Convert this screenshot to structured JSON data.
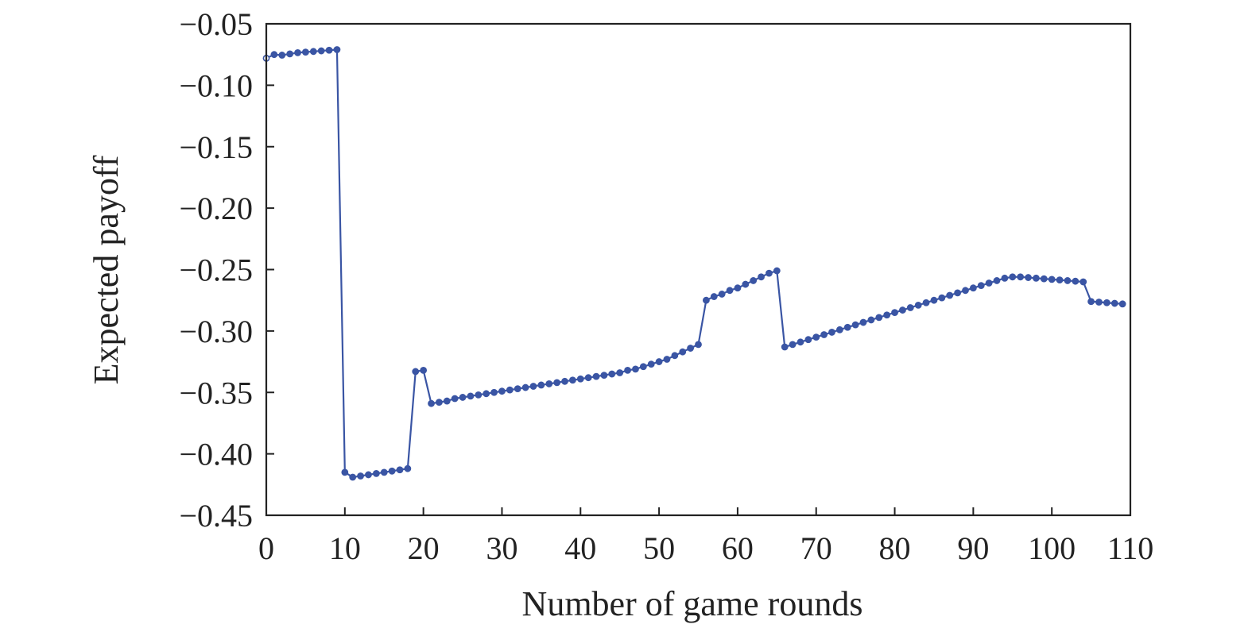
{
  "chart_data": {
    "type": "line",
    "title": "",
    "xlabel": "Number of game rounds",
    "ylabel": "Expected payoff",
    "xlim": [
      0,
      110
    ],
    "ylim": [
      -0.45,
      -0.05
    ],
    "xticks": [
      0,
      10,
      20,
      30,
      40,
      50,
      60,
      70,
      80,
      90,
      100,
      110
    ],
    "yticks": [
      -0.45,
      -0.4,
      -0.35,
      -0.3,
      -0.25,
      -0.2,
      -0.15,
      -0.1,
      -0.05
    ],
    "xtick_labels": [
      "0",
      "10",
      "20",
      "30",
      "40",
      "50",
      "60",
      "70",
      "80",
      "90",
      "100",
      "110"
    ],
    "ytick_labels": [
      "−0.45",
      "−0.40",
      "−0.35",
      "−0.30",
      "−0.25",
      "−0.20",
      "−0.15",
      "−0.10",
      "−0.05"
    ],
    "grid": false,
    "legend": "none",
    "series": [
      {
        "color": "#3a55a4",
        "marker": "circle",
        "x": [
          0,
          1,
          2,
          3,
          4,
          5,
          6,
          7,
          8,
          9,
          10,
          11,
          12,
          13,
          14,
          15,
          16,
          17,
          18,
          19,
          20,
          21,
          22,
          23,
          24,
          25,
          26,
          27,
          28,
          29,
          30,
          31,
          32,
          33,
          34,
          35,
          36,
          37,
          38,
          39,
          40,
          41,
          42,
          43,
          44,
          45,
          46,
          47,
          48,
          49,
          50,
          51,
          52,
          53,
          54,
          55,
          56,
          57,
          58,
          59,
          60,
          61,
          62,
          63,
          64,
          65,
          66,
          67,
          68,
          69,
          70,
          71,
          72,
          73,
          74,
          75,
          76,
          77,
          78,
          79,
          80,
          81,
          82,
          83,
          84,
          85,
          86,
          87,
          88,
          89,
          90,
          91,
          92,
          93,
          94,
          95,
          96,
          97,
          98,
          99,
          100,
          101,
          102,
          103,
          104,
          105,
          106,
          107,
          108,
          109
        ],
        "y": [
          -0.078,
          -0.075,
          -0.0755,
          -0.0745,
          -0.0735,
          -0.073,
          -0.0725,
          -0.072,
          -0.0715,
          -0.071,
          -0.415,
          -0.419,
          -0.418,
          -0.417,
          -0.416,
          -0.415,
          -0.414,
          -0.413,
          -0.412,
          -0.333,
          -0.332,
          -0.359,
          -0.358,
          -0.357,
          -0.355,
          -0.354,
          -0.353,
          -0.352,
          -0.351,
          -0.35,
          -0.349,
          -0.348,
          -0.347,
          -0.346,
          -0.345,
          -0.344,
          -0.343,
          -0.342,
          -0.341,
          -0.34,
          -0.339,
          -0.338,
          -0.337,
          -0.336,
          -0.335,
          -0.334,
          -0.332,
          -0.331,
          -0.329,
          -0.327,
          -0.325,
          -0.323,
          -0.32,
          -0.317,
          -0.314,
          -0.311,
          -0.275,
          -0.272,
          -0.27,
          -0.267,
          -0.265,
          -0.262,
          -0.259,
          -0.256,
          -0.253,
          -0.251,
          -0.313,
          -0.311,
          -0.309,
          -0.307,
          -0.305,
          -0.303,
          -0.301,
          -0.299,
          -0.297,
          -0.295,
          -0.293,
          -0.291,
          -0.289,
          -0.287,
          -0.285,
          -0.283,
          -0.281,
          -0.279,
          -0.277,
          -0.275,
          -0.273,
          -0.271,
          -0.269,
          -0.267,
          -0.265,
          -0.263,
          -0.261,
          -0.259,
          -0.257,
          -0.256,
          -0.256,
          -0.2565,
          -0.257,
          -0.2575,
          -0.258,
          -0.2585,
          -0.259,
          -0.2595,
          -0.26,
          -0.276,
          -0.2765,
          -0.277,
          -0.2775,
          -0.278
        ]
      }
    ]
  }
}
